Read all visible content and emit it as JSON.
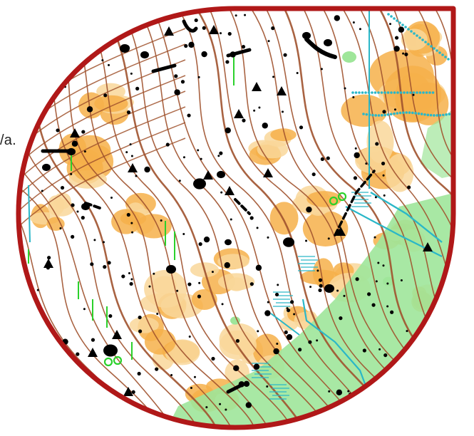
{
  "page": {
    "text_fragment": "/a."
  },
  "map": {
    "type": "orienteering-map-excerpt",
    "frame_shape": "teardrop",
    "colors": {
      "frame": "#b01818",
      "contour": "#a0522d",
      "open_land": "#f6b04a",
      "rough_open": "#f9d79a",
      "vegetation": "#9fe69a",
      "water": "#2ab7c8",
      "feature": "#000000",
      "special_green": "#2bd12b"
    },
    "features": [
      "contour-lines",
      "boulders",
      "boulder-fields",
      "pits",
      "knolls",
      "streams",
      "marshes",
      "paths",
      "vegetation-areas"
    ]
  }
}
